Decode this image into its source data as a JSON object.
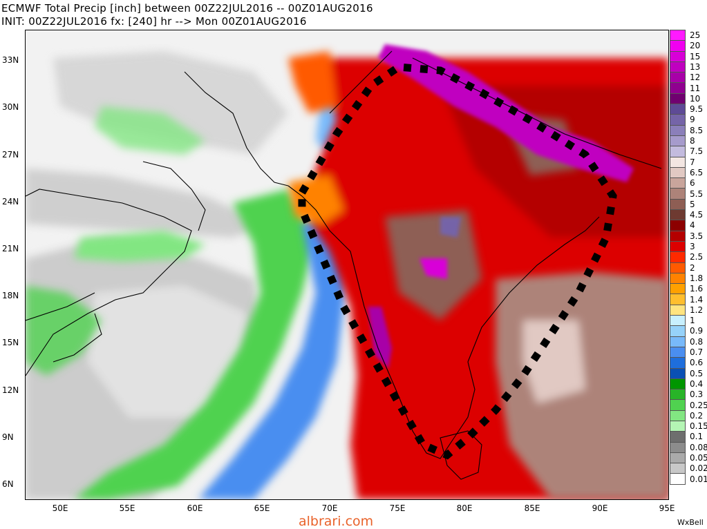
{
  "header": {
    "line1": "ECMWF Total Precip [inch] between 00Z22JUL2016 -- 00Z01AUG2016",
    "line2": "INIT: 00Z22JUL2016 fx: [240] hr --> Mon 00Z01AUG2016"
  },
  "axes": {
    "lat_labels": [
      "33N",
      "30N",
      "27N",
      "24N",
      "21N",
      "18N",
      "15N",
      "12N",
      "9N",
      "6N"
    ],
    "lon_labels": [
      "50E",
      "55E",
      "60E",
      "65E",
      "70E",
      "75E",
      "80E",
      "85E",
      "90E",
      "95E"
    ]
  },
  "legend": {
    "levels": [
      {
        "label": "25",
        "color": "#ff1aff"
      },
      {
        "label": "20",
        "color": "#f000f0"
      },
      {
        "label": "15",
        "color": "#d800d8"
      },
      {
        "label": "13",
        "color": "#c000c0"
      },
      {
        "label": "12",
        "color": "#a800a8"
      },
      {
        "label": "11",
        "color": "#900090"
      },
      {
        "label": "10",
        "color": "#700070"
      },
      {
        "label": "9.5",
        "color": "#5e4a96"
      },
      {
        "label": "9",
        "color": "#7564a8"
      },
      {
        "label": "8.5",
        "color": "#8b7fba"
      },
      {
        "label": "8",
        "color": "#a69bcc"
      },
      {
        "label": "7.5",
        "color": "#c3bbde"
      },
      {
        "label": "7",
        "color": "#f3e6e2"
      },
      {
        "label": "6.5",
        "color": "#e1c9c3"
      },
      {
        "label": "6",
        "color": "#c9a59c"
      },
      {
        "label": "5.5",
        "color": "#ad8379"
      },
      {
        "label": "5",
        "color": "#8e5e54"
      },
      {
        "label": "4.5",
        "color": "#6e3a31"
      },
      {
        "label": "4",
        "color": "#8c0000"
      },
      {
        "label": "3.5",
        "color": "#b40000"
      },
      {
        "label": "3",
        "color": "#dc0000"
      },
      {
        "label": "2.5",
        "color": "#ff2a00"
      },
      {
        "label": "2",
        "color": "#ff5a00"
      },
      {
        "label": "1.8",
        "color": "#ff8200"
      },
      {
        "label": "1.6",
        "color": "#ffa000"
      },
      {
        "label": "1.4",
        "color": "#ffbe2e"
      },
      {
        "label": "1.2",
        "color": "#ffe480"
      },
      {
        "label": "1",
        "color": "#c8f0ff"
      },
      {
        "label": "0.9",
        "color": "#96d2fa"
      },
      {
        "label": "0.8",
        "color": "#78b9fa"
      },
      {
        "label": "0.7",
        "color": "#4a8ef0"
      },
      {
        "label": "0.6",
        "color": "#1e6edc"
      },
      {
        "label": "0.5",
        "color": "#0a50b4"
      },
      {
        "label": "0.4",
        "color": "#009600"
      },
      {
        "label": "0.3",
        "color": "#28b428"
      },
      {
        "label": "0.25",
        "color": "#50d250"
      },
      {
        "label": "0.2",
        "color": "#82e682"
      },
      {
        "label": "0.15",
        "color": "#b4f5b4"
      },
      {
        "label": "0.1",
        "color": "#6e6e6e"
      },
      {
        "label": "0.08",
        "color": "#8c8c8c"
      },
      {
        "label": "0.05",
        "color": "#aaaaaa"
      },
      {
        "label": "0.02",
        "color": "#c8c8c8"
      },
      {
        "label": "0.01",
        "color": "#ffffff"
      }
    ]
  },
  "credit": "WxBell",
  "watermark": "albrari.com"
}
